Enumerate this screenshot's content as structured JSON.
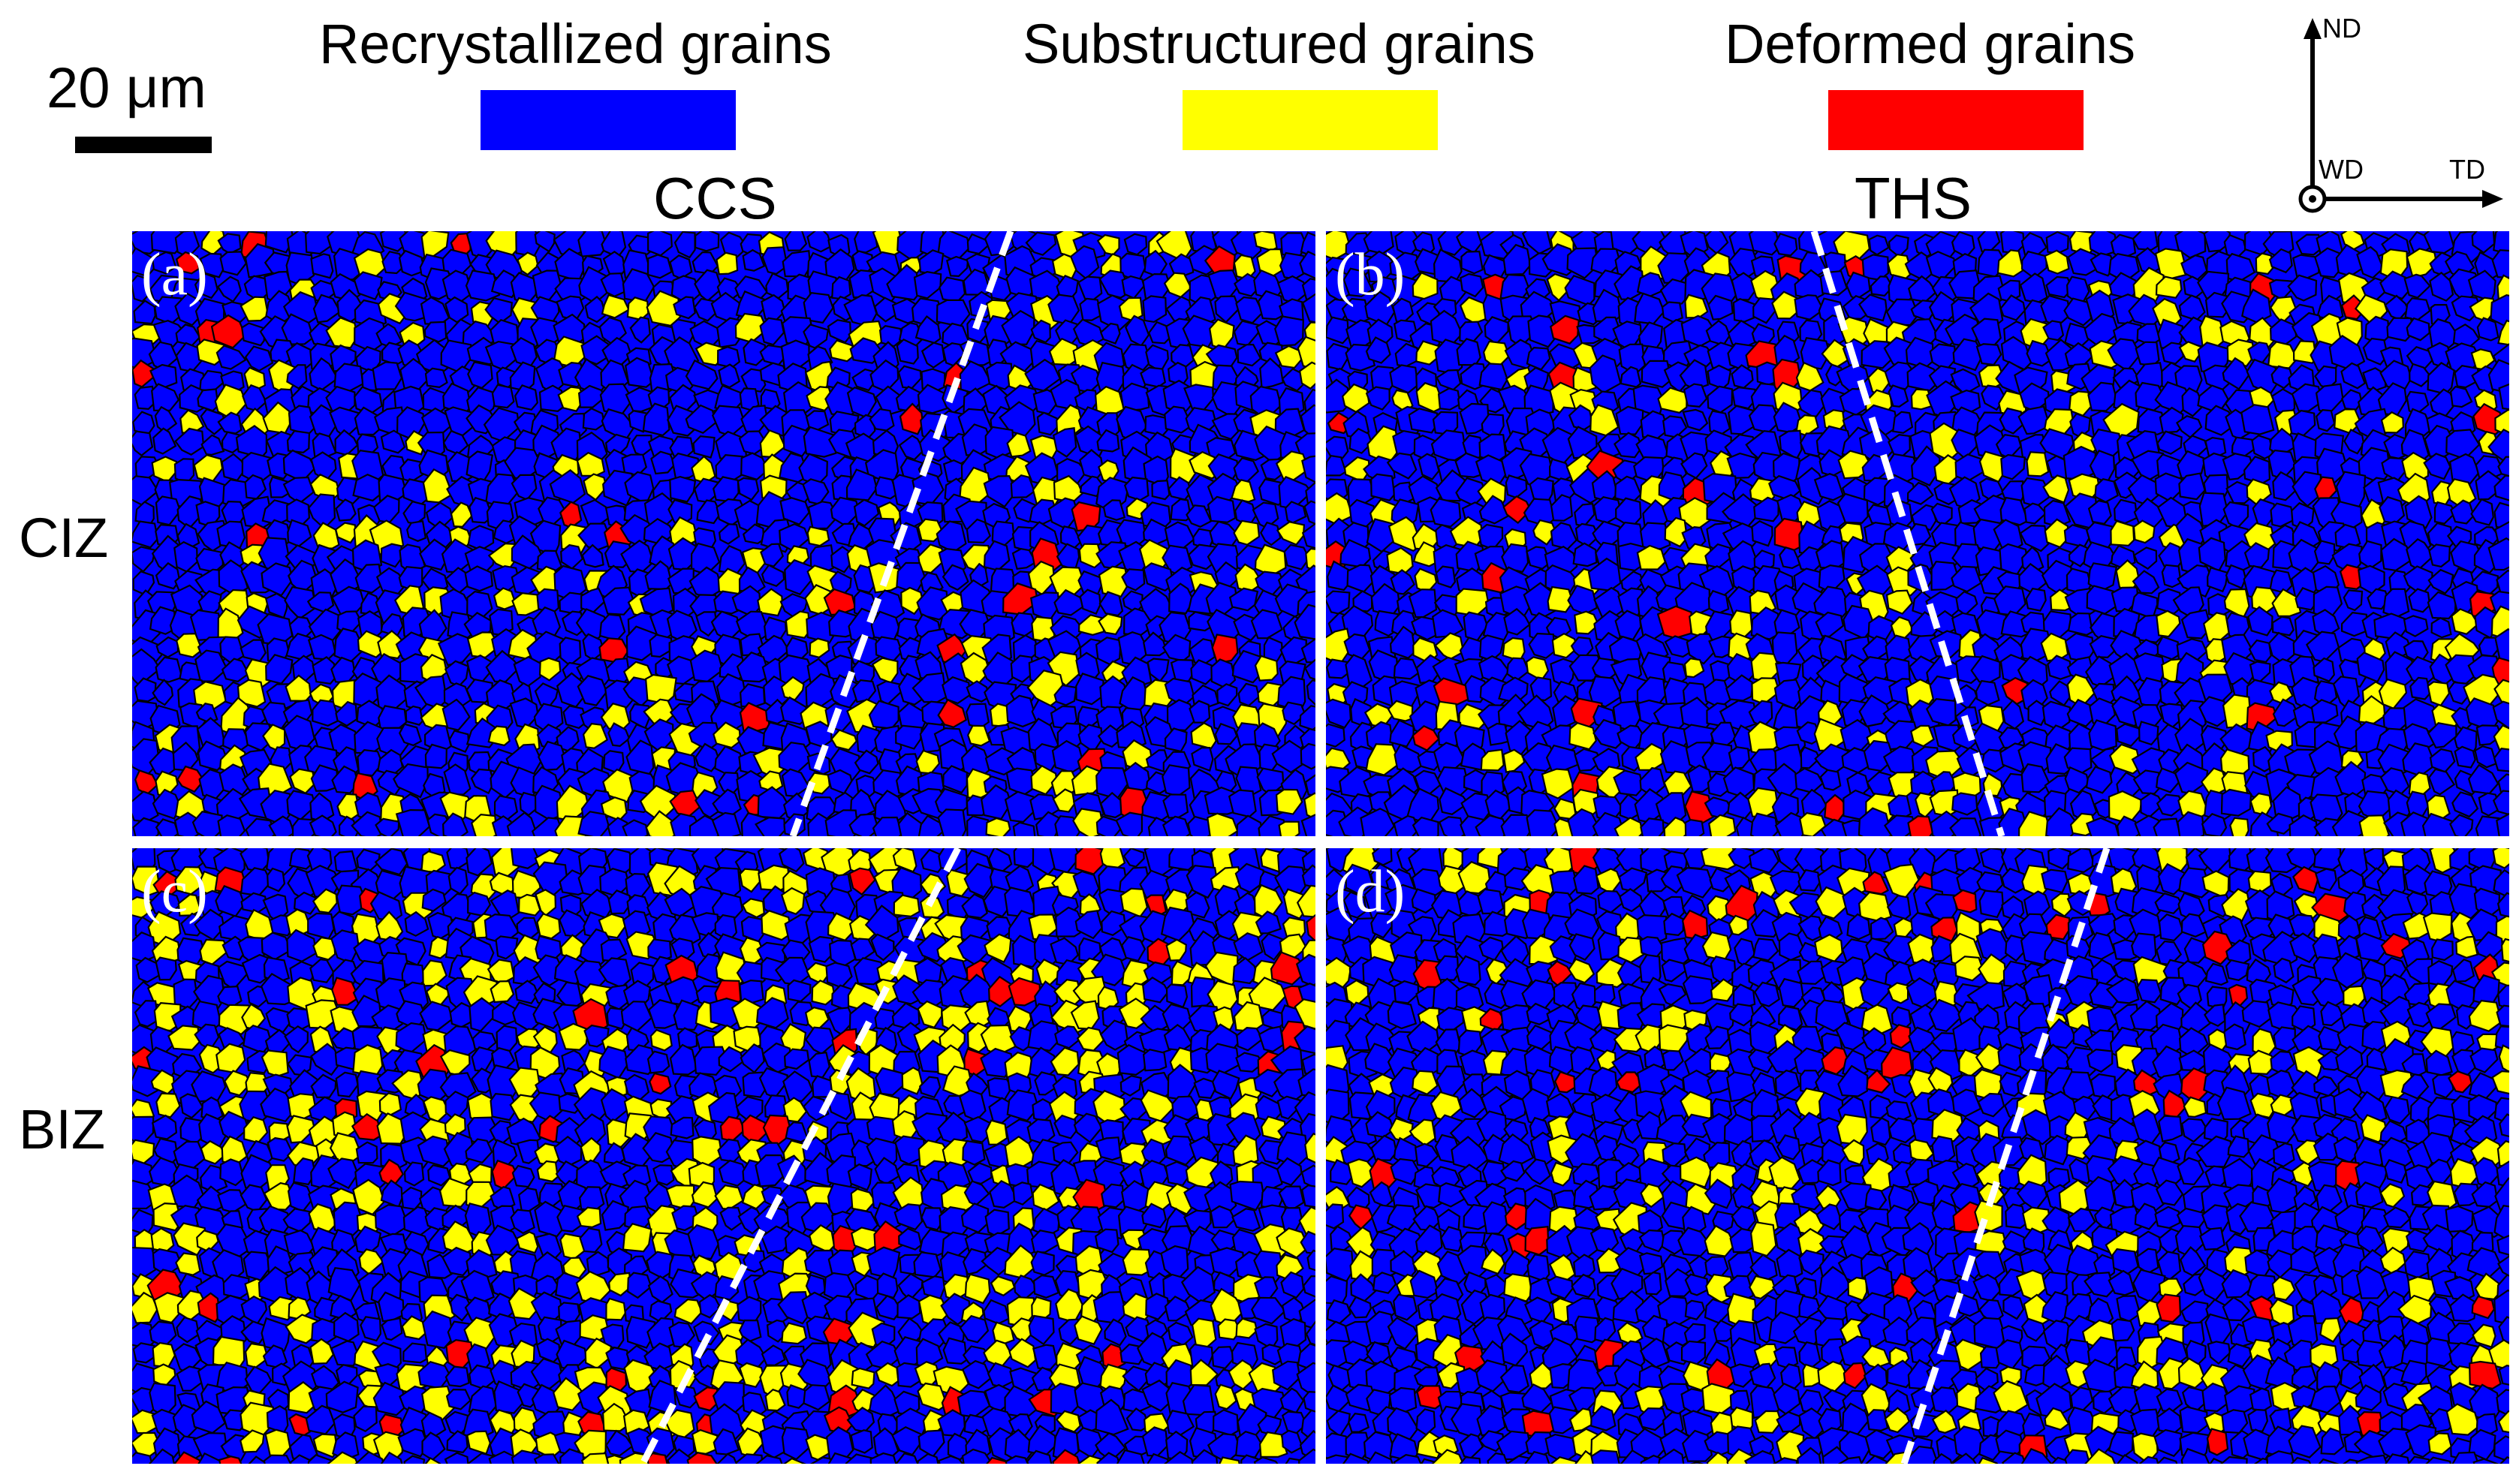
{
  "scale_bar": {
    "label": "20 μm"
  },
  "legend": [
    {
      "label": "Recrystallized grains",
      "color": "#0000ff"
    },
    {
      "label": "Substructured grains",
      "color": "#ffff00"
    },
    {
      "label": "Deformed grains",
      "color": "#ff0000"
    }
  ],
  "columns": {
    "left": "CCS",
    "right": "THS"
  },
  "rows": {
    "top": "CIZ",
    "bottom": "BIZ"
  },
  "axes": {
    "up": "ND",
    "origin": "WD",
    "right": "TD"
  },
  "panels": [
    {
      "letter": "(a)",
      "yellow_fraction": 0.14,
      "red_fraction": 0.02
    },
    {
      "letter": "(b)",
      "yellow_fraction": 0.16,
      "red_fraction": 0.02
    },
    {
      "letter": "(c)",
      "yellow_fraction": 0.3,
      "red_fraction": 0.05
    },
    {
      "letter": "(d)",
      "yellow_fraction": 0.15,
      "red_fraction": 0.03
    }
  ],
  "colors": {
    "recrystallized": "#0000ff",
    "substructured": "#ffff00",
    "deformed": "#ff0000",
    "boundary": "#000000",
    "divider": "#ffffff"
  }
}
